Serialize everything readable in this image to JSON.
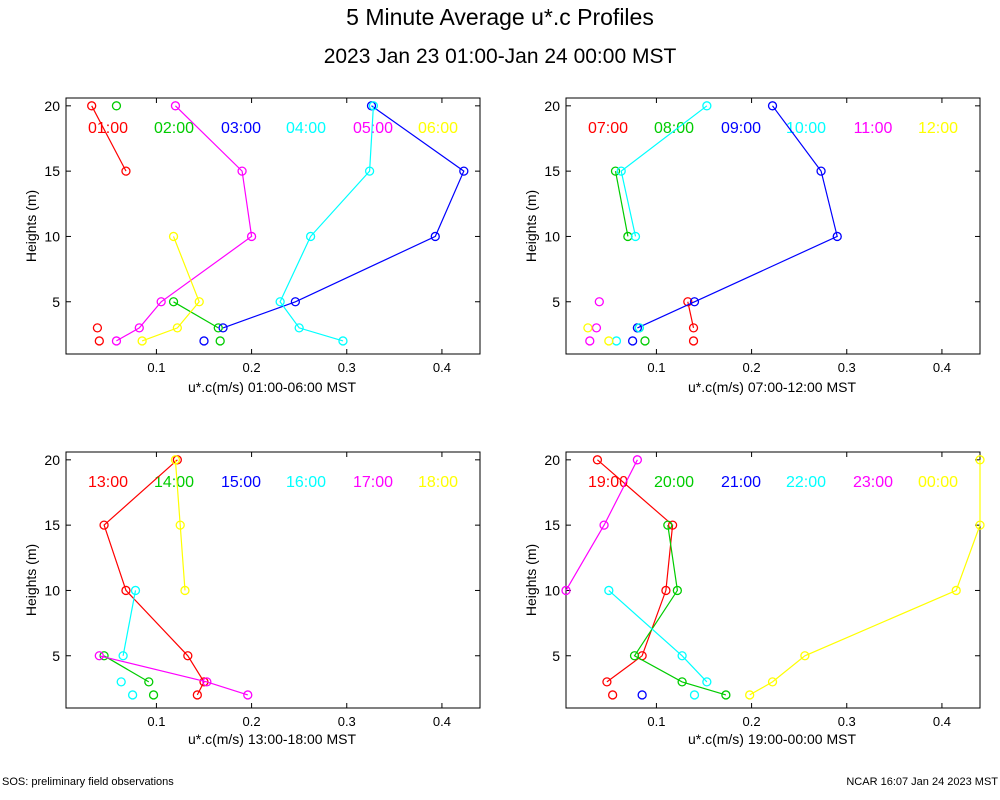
{
  "header": {
    "title": "5 Minute Average u*.c Profiles",
    "subtitle": "2023 Jan 23 01:00-Jan 24 00:00 MST"
  },
  "footer": {
    "left": "SOS: preliminary field observations",
    "right": "NCAR 16:07 Jan 24 2023 MST"
  },
  "colors": [
    "#ff0000",
    "#00cc00",
    "#0000ff",
    "#00ffff",
    "#ff00ff",
    "#ffff00"
  ],
  "chart_data": [
    {
      "type": "scatter",
      "title": "",
      "xlabel": "u*.c(m/s) 01:00-06:00 MST",
      "ylabel": "Heights (m)",
      "xlim": [
        0.005,
        0.44
      ],
      "ylim": [
        1,
        20.6
      ],
      "xticks": [
        0.1,
        0.2,
        0.3,
        0.4
      ],
      "xtick_labels": [
        "0.1",
        "0.2",
        "0.3",
        "0.4"
      ],
      "yticks": [
        5,
        10,
        15,
        20
      ],
      "ytick_labels": [
        "5",
        "10",
        "15",
        "20"
      ],
      "series": [
        {
          "name": "01:00",
          "points": [
            [
              0.032,
              20
            ],
            [
              0.068,
              15
            ]
          ],
          "extra": [
            [
              0.038,
              3
            ],
            [
              0.04,
              2
            ]
          ]
        },
        {
          "name": "02:00",
          "points": [
            [
              0.118,
              5
            ],
            [
              0.165,
              3
            ]
          ],
          "extra": [
            [
              0.058,
              20
            ],
            [
              0.167,
              2
            ]
          ]
        },
        {
          "name": "03:00",
          "points": [
            [
              0.326,
              20
            ],
            [
              0.423,
              15
            ],
            [
              0.393,
              10
            ],
            [
              0.246,
              5
            ],
            [
              0.17,
              3
            ]
          ],
          "extra": [
            [
              0.15,
              2
            ]
          ]
        },
        {
          "name": "04:00",
          "points": [
            [
              0.328,
              20
            ],
            [
              0.324,
              15
            ],
            [
              0.262,
              10
            ],
            [
              0.23,
              5
            ],
            [
              0.25,
              3
            ],
            [
              0.296,
              2
            ]
          ],
          "extra": []
        },
        {
          "name": "05:00",
          "points": [
            [
              0.12,
              20
            ],
            [
              0.19,
              15
            ],
            [
              0.2,
              10
            ],
            [
              0.105,
              5
            ],
            [
              0.082,
              3
            ],
            [
              0.058,
              2
            ]
          ],
          "extra": []
        },
        {
          "name": "06:00",
          "points": [
            [
              0.118,
              10
            ],
            [
              0.145,
              5
            ],
            [
              0.122,
              3
            ],
            [
              0.085,
              2
            ]
          ],
          "extra": []
        }
      ]
    },
    {
      "type": "scatter",
      "title": "",
      "xlabel": "u*.c(m/s) 07:00-12:00 MST",
      "ylabel": "Heights (m)",
      "xlim": [
        0.005,
        0.44
      ],
      "ylim": [
        1,
        20.6
      ],
      "xticks": [
        0.1,
        0.2,
        0.3,
        0.4
      ],
      "xtick_labels": [
        "0.1",
        "0.2",
        "0.3",
        "0.4"
      ],
      "yticks": [
        5,
        10,
        15,
        20
      ],
      "ytick_labels": [
        "5",
        "10",
        "15",
        "20"
      ],
      "series": [
        {
          "name": "07:00",
          "points": [
            [
              0.133,
              5
            ],
            [
              0.139,
              3
            ]
          ],
          "extra": [
            [
              0.139,
              2
            ]
          ]
        },
        {
          "name": "08:00",
          "points": [
            [
              0.057,
              15
            ],
            [
              0.07,
              10
            ]
          ],
          "extra": [
            [
              0.082,
              3
            ],
            [
              0.088,
              2
            ]
          ]
        },
        {
          "name": "09:00",
          "points": [
            [
              0.222,
              20
            ],
            [
              0.273,
              15
            ],
            [
              0.29,
              10
            ],
            [
              0.14,
              5
            ],
            [
              0.08,
              3
            ]
          ],
          "extra": [
            [
              0.075,
              2
            ]
          ]
        },
        {
          "name": "10:00",
          "points": [
            [
              0.153,
              20
            ],
            [
              0.063,
              15
            ],
            [
              0.078,
              10
            ]
          ],
          "extra": [
            [
              0.082,
              3
            ],
            [
              0.058,
              2
            ]
          ]
        },
        {
          "name": "11:00",
          "points": [],
          "extra": [
            [
              0.04,
              5
            ],
            [
              0.037,
              3
            ],
            [
              0.03,
              2
            ]
          ]
        },
        {
          "name": "12:00",
          "points": [],
          "extra": [
            [
              0.028,
              3
            ],
            [
              0.05,
              2
            ]
          ]
        }
      ]
    },
    {
      "type": "scatter",
      "title": "",
      "xlabel": "u*.c(m/s) 13:00-18:00 MST",
      "ylabel": "Heights (m)",
      "xlim": [
        0.005,
        0.44
      ],
      "ylim": [
        1,
        20.6
      ],
      "xticks": [
        0.1,
        0.2,
        0.3,
        0.4
      ],
      "xtick_labels": [
        "0.1",
        "0.2",
        "0.3",
        "0.4"
      ],
      "yticks": [
        5,
        10,
        15,
        20
      ],
      "ytick_labels": [
        "5",
        "10",
        "15",
        "20"
      ],
      "series": [
        {
          "name": "13:00",
          "points": [
            [
              0.122,
              20
            ],
            [
              0.045,
              15
            ],
            [
              0.068,
              10
            ],
            [
              0.133,
              5
            ],
            [
              0.15,
              3
            ],
            [
              0.143,
              2
            ]
          ],
          "extra": []
        },
        {
          "name": "14:00",
          "points": [
            [
              0.045,
              5
            ],
            [
              0.092,
              3
            ]
          ],
          "extra": [
            [
              0.097,
              2
            ]
          ]
        },
        {
          "name": "15:00",
          "points": [],
          "extra": []
        },
        {
          "name": "16:00",
          "points": [
            [
              0.078,
              10
            ],
            [
              0.065,
              5
            ]
          ],
          "extra": [
            [
              0.063,
              3
            ],
            [
              0.075,
              2
            ]
          ]
        },
        {
          "name": "17:00",
          "points": [
            [
              0.04,
              5
            ],
            [
              0.153,
              3
            ],
            [
              0.196,
              2
            ]
          ],
          "extra": []
        },
        {
          "name": "18:00",
          "points": [
            [
              0.12,
              20
            ],
            [
              0.125,
              15
            ],
            [
              0.13,
              10
            ]
          ],
          "extra": []
        }
      ]
    },
    {
      "type": "scatter",
      "title": "",
      "xlabel": "u*.c(m/s) 19:00-00:00 MST",
      "ylabel": "Heights (m)",
      "xlim": [
        0.005,
        0.44
      ],
      "ylim": [
        1,
        20.6
      ],
      "xticks": [
        0.1,
        0.2,
        0.3,
        0.4
      ],
      "xtick_labels": [
        "0.1",
        "0.2",
        "0.3",
        "0.4"
      ],
      "yticks": [
        5,
        10,
        15,
        20
      ],
      "ytick_labels": [
        "5",
        "10",
        "15",
        "20"
      ],
      "series": [
        {
          "name": "19:00",
          "points": [
            [
              0.038,
              20
            ],
            [
              0.117,
              15
            ],
            [
              0.11,
              10
            ],
            [
              0.085,
              5
            ],
            [
              0.048,
              3
            ]
          ],
          "extra": [
            [
              0.054,
              2
            ]
          ]
        },
        {
          "name": "20:00",
          "points": [
            [
              0.112,
              15
            ],
            [
              0.122,
              10
            ],
            [
              0.077,
              5
            ],
            [
              0.127,
              3
            ],
            [
              0.173,
              2
            ]
          ],
          "extra": []
        },
        {
          "name": "21:00",
          "points": [],
          "extra": [
            [
              0.085,
              2
            ]
          ]
        },
        {
          "name": "22:00",
          "points": [
            [
              0.05,
              10
            ],
            [
              0.127,
              5
            ],
            [
              0.153,
              3
            ]
          ],
          "extra": [
            [
              0.14,
              2
            ]
          ]
        },
        {
          "name": "23:00",
          "points": [
            [
              0.08,
              20
            ],
            [
              0.045,
              15
            ],
            [
              0.005,
              10
            ]
          ],
          "extra": []
        },
        {
          "name": "00:00",
          "points": [
            [
              0.44,
              20
            ],
            [
              0.44,
              15
            ],
            [
              0.415,
              10
            ],
            [
              0.256,
              5
            ],
            [
              0.222,
              3
            ],
            [
              0.198,
              2
            ]
          ],
          "extra": []
        }
      ]
    }
  ]
}
